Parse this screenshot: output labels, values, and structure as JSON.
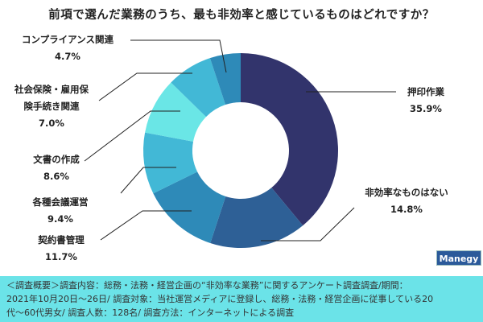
{
  "chart_data": {
    "type": "pie",
    "variant": "donut",
    "title": "前項で選んだ業務のうち、最も非効率と感じているものはどれですか？",
    "slices": [
      {
        "label": "押印作業",
        "value": 35.9,
        "display": "35.9%",
        "color": "#32346c"
      },
      {
        "label": "非効率なものはない",
        "value": 14.8,
        "display": "14.8%",
        "color": "#2e6096"
      },
      {
        "label": "契約書管理",
        "value": 11.7,
        "display": "11.7%",
        "color": "#2e8ab8"
      },
      {
        "label": "各種会議運営",
        "value": 9.4,
        "display": "9.4%",
        "color": "#42b8d6"
      },
      {
        "label": "文書の作成",
        "value": 8.6,
        "display": "8.6%",
        "color": "#6ae6e6"
      },
      {
        "label": "社会保険・雇用保険手続き関連",
        "label_lines": [
          "社会保険・雇用保",
          "険手続き関連"
        ],
        "value": 7.0,
        "display": "7.0%",
        "color": "#42b8d6"
      },
      {
        "label": "コンプライアンス関連",
        "value": 4.7,
        "display": "4.7%",
        "color": "#2e8ab8"
      }
    ]
  },
  "footer": {
    "line1": "＜調査概要＞調査内容：総務・法務・経営企画の“非効率な業務”に関するアンケート調査調査/期間：",
    "line2": "2021年10月20日～26日/ 調査対象：当社運営メディアに登録し、総務・法務・経営企画に従事している20",
    "line3": "代～60代男女/ 調査人数：128名/ 調査方法：インターネットによる調査"
  },
  "logo": "Manegy"
}
